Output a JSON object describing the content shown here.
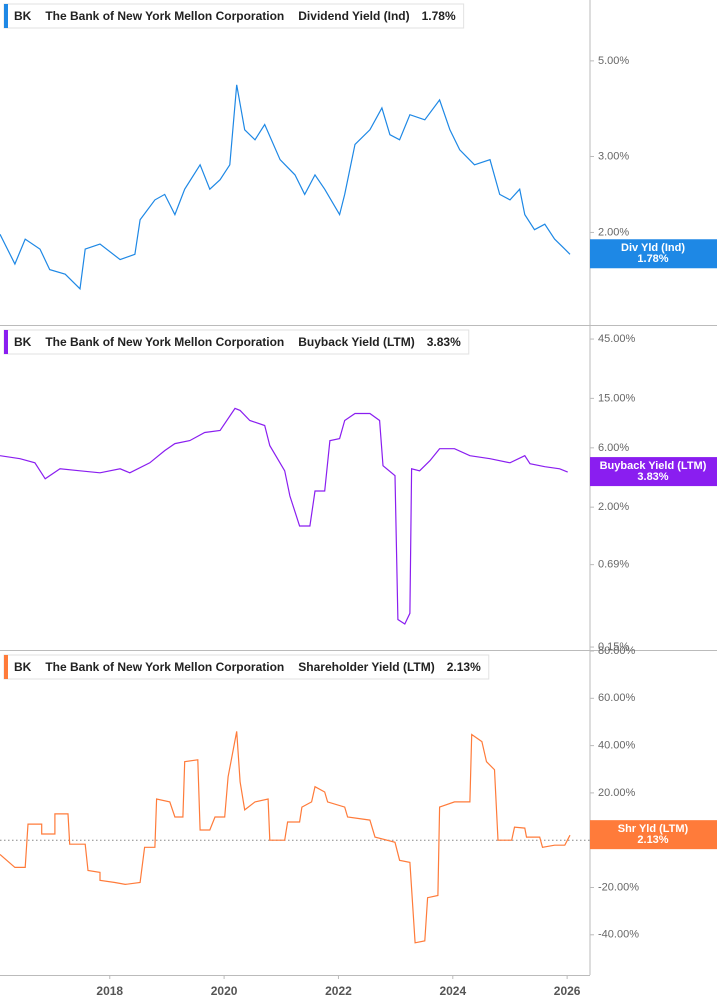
{
  "chart_data": [
    {
      "type": "line",
      "ticker": "BK",
      "company": "The Bank of New York Mellon Corporation",
      "log_scale": true,
      "series": [
        {
          "name": "Dividend Yield (Ind)",
          "short_name": "Div Yld (Ind)",
          "color": "#1e88e5",
          "x": [
            2016.08,
            2016.34,
            2016.52,
            2016.78,
            2016.95,
            2017.22,
            2017.48,
            2017.57,
            2017.83,
            2018.18,
            2018.44,
            2018.53,
            2018.79,
            2018.96,
            2019.14,
            2019.31,
            2019.58,
            2019.75,
            2019.93,
            2020.1,
            2020.22,
            2020.36,
            2020.54,
            2020.71,
            2020.98,
            2021.24,
            2021.41,
            2021.59,
            2021.76,
            2022.02,
            2022.11,
            2022.29,
            2022.55,
            2022.76,
            2022.9,
            2023.07,
            2023.25,
            2023.51,
            2023.77,
            2023.95,
            2024.12,
            2024.38,
            2024.65,
            2024.82,
            2025.0,
            2025.17,
            2025.26,
            2025.43,
            2025.61,
            2025.78,
            2025.96,
            2026.05
          ],
          "values": [
            1.98,
            1.69,
            1.93,
            1.83,
            1.64,
            1.6,
            1.48,
            1.83,
            1.88,
            1.73,
            1.78,
            2.14,
            2.38,
            2.45,
            2.2,
            2.52,
            2.87,
            2.52,
            2.65,
            2.87,
            4.4,
            3.46,
            3.28,
            3.56,
            2.95,
            2.72,
            2.45,
            2.72,
            2.52,
            2.2,
            2.45,
            3.2,
            3.46,
            3.89,
            3.37,
            3.28,
            3.75,
            3.65,
            4.06,
            3.46,
            3.11,
            2.87,
            2.95,
            2.45,
            2.38,
            2.52,
            2.2,
            2.03,
            2.09,
            1.93,
            1.83,
            1.78
          ]
        }
      ],
      "last": {
        "value": 1.78,
        "label": "1.78%"
      },
      "xlim": [
        2016.08,
        2026.4
      ],
      "ylim": [
        1.22,
        6.92
      ],
      "yticks": [
        {
          "value": 2,
          "label": "2.00%"
        },
        {
          "value": 3,
          "label": "3.00%"
        },
        {
          "value": 5,
          "label": "5.00%"
        }
      ]
    },
    {
      "type": "line",
      "ticker": "BK",
      "company": "The Bank of New York Mellon Corporation",
      "log_scale": true,
      "series": [
        {
          "name": "Buyback Yield (LTM)",
          "short_name": "Buyback Yield (LTM)",
          "color": "#8a1ef0",
          "x": [
            2016.08,
            2016.43,
            2016.69,
            2016.87,
            2017.13,
            2017.48,
            2017.83,
            2018.18,
            2018.35,
            2018.7,
            2018.96,
            2019.14,
            2019.4,
            2019.66,
            2019.93,
            2020.19,
            2020.28,
            2020.45,
            2020.71,
            2020.8,
            2021.06,
            2021.15,
            2021.32,
            2021.5,
            2021.59,
            2021.76,
            2021.85,
            2022.02,
            2022.11,
            2022.29,
            2022.55,
            2022.72,
            2022.78,
            2022.99,
            2023.04,
            2023.16,
            2023.25,
            2023.28,
            2023.42,
            2023.6,
            2023.77,
            2024.03,
            2024.3,
            2024.65,
            2025.0,
            2025.26,
            2025.35,
            2025.61,
            2025.87,
            2026.01
          ],
          "values": [
            5.19,
            4.91,
            4.55,
            3.38,
            4.07,
            3.92,
            3.78,
            4.07,
            3.78,
            4.55,
            5.7,
            6.49,
            6.86,
            7.97,
            8.27,
            12.45,
            12.0,
            9.96,
            9.07,
            6.25,
            3.92,
            2.46,
            1.41,
            1.41,
            2.7,
            2.7,
            6.86,
            7.12,
            9.96,
            11.34,
            11.34,
            9.96,
            4.31,
            3.58,
            0.25,
            0.23,
            0.28,
            4.07,
            3.92,
            4.73,
            5.91,
            5.91,
            5.19,
            4.91,
            4.55,
            5.19,
            4.47,
            4.23,
            4.07,
            3.83
          ]
        }
      ],
      "last": {
        "value": 3.83,
        "label": "3.83%"
      },
      "xlim": [
        2016.08,
        2026.4
      ],
      "ylim": [
        0.142,
        57.3
      ],
      "yticks": [
        {
          "value": 0.15,
          "label": "0.15%"
        },
        {
          "value": 0.69,
          "label": "0.69%"
        },
        {
          "value": 2,
          "label": "2.00%"
        },
        {
          "value": 6,
          "label": "6.00%"
        },
        {
          "value": 15,
          "label": "15.00%"
        },
        {
          "value": 45,
          "label": "45.00%"
        }
      ]
    },
    {
      "type": "line",
      "ticker": "BK",
      "company": "The Bank of New York Mellon Corporation",
      "log_scale": false,
      "zero_line": true,
      "series": [
        {
          "name": "Shareholder Yield (LTM)",
          "short_name": "Shr Yld (LTM)",
          "color": "#ff7b3a",
          "x": [
            2016.08,
            2016.34,
            2016.52,
            2016.57,
            2016.81,
            2016.81,
            2017.04,
            2017.04,
            2017.27,
            2017.3,
            2017.57,
            2017.62,
            2017.83,
            2017.83,
            2018.09,
            2018.27,
            2018.53,
            2018.61,
            2018.79,
            2018.82,
            2019.05,
            2019.14,
            2019.28,
            2019.31,
            2019.54,
            2019.58,
            2019.75,
            2019.84,
            2020.01,
            2020.07,
            2020.22,
            2020.28,
            2020.36,
            2020.54,
            2020.77,
            2020.8,
            2021.06,
            2021.11,
            2021.32,
            2021.36,
            2021.53,
            2021.59,
            2021.76,
            2021.81,
            2022.11,
            2022.16,
            2022.55,
            2022.64,
            2022.99,
            2023.07,
            2023.25,
            2023.34,
            2023.51,
            2023.56,
            2023.74,
            2023.77,
            2024.03,
            2024.3,
            2024.33,
            2024.51,
            2024.59,
            2024.73,
            2024.79,
            2025.03,
            2025.08,
            2025.26,
            2025.29,
            2025.52,
            2025.57,
            2025.78,
            2025.96,
            2026.05
          ],
          "values": [
            -6.0,
            -11.5,
            -11.5,
            6.8,
            6.8,
            2.6,
            2.6,
            11.1,
            11.1,
            -1.7,
            -1.7,
            -12.8,
            -13.6,
            -17.0,
            -17.9,
            -18.7,
            -17.9,
            -3.0,
            -3.0,
            17.4,
            16.2,
            9.8,
            9.8,
            33.2,
            34.0,
            4.3,
            4.3,
            9.8,
            9.8,
            26.8,
            46.0,
            24.7,
            12.8,
            16.2,
            17.4,
            0,
            0,
            7.7,
            7.7,
            14.0,
            16.2,
            22.6,
            20.4,
            16.2,
            14.0,
            9.8,
            8.5,
            1.3,
            -0.9,
            -8.5,
            -9.4,
            -43.4,
            -42.6,
            -24.3,
            -23.4,
            14.0,
            16.2,
            16.2,
            44.7,
            41.7,
            33.2,
            29.8,
            0,
            0,
            5.5,
            5.1,
            1.3,
            1.3,
            -3.0,
            -2.1,
            -2.1,
            2.13
          ]
        }
      ],
      "last": {
        "value": 2.13,
        "label": "2.13%"
      },
      "xlim": [
        2016.08,
        2026.4
      ],
      "ylim": [
        -57,
        80
      ],
      "yticks": [
        {
          "value": -40,
          "label": "-40.00%"
        },
        {
          "value": -20,
          "label": "-20.00%"
        },
        {
          "value": 0,
          "label": "0.00%"
        },
        {
          "value": 20,
          "label": "20.00%"
        },
        {
          "value": 40,
          "label": "40.00%"
        },
        {
          "value": 60,
          "label": "60.00%"
        },
        {
          "value": 80,
          "label": "80.00%"
        }
      ],
      "xticks": [
        2018,
        2020,
        2022,
        2024,
        2026
      ]
    }
  ]
}
